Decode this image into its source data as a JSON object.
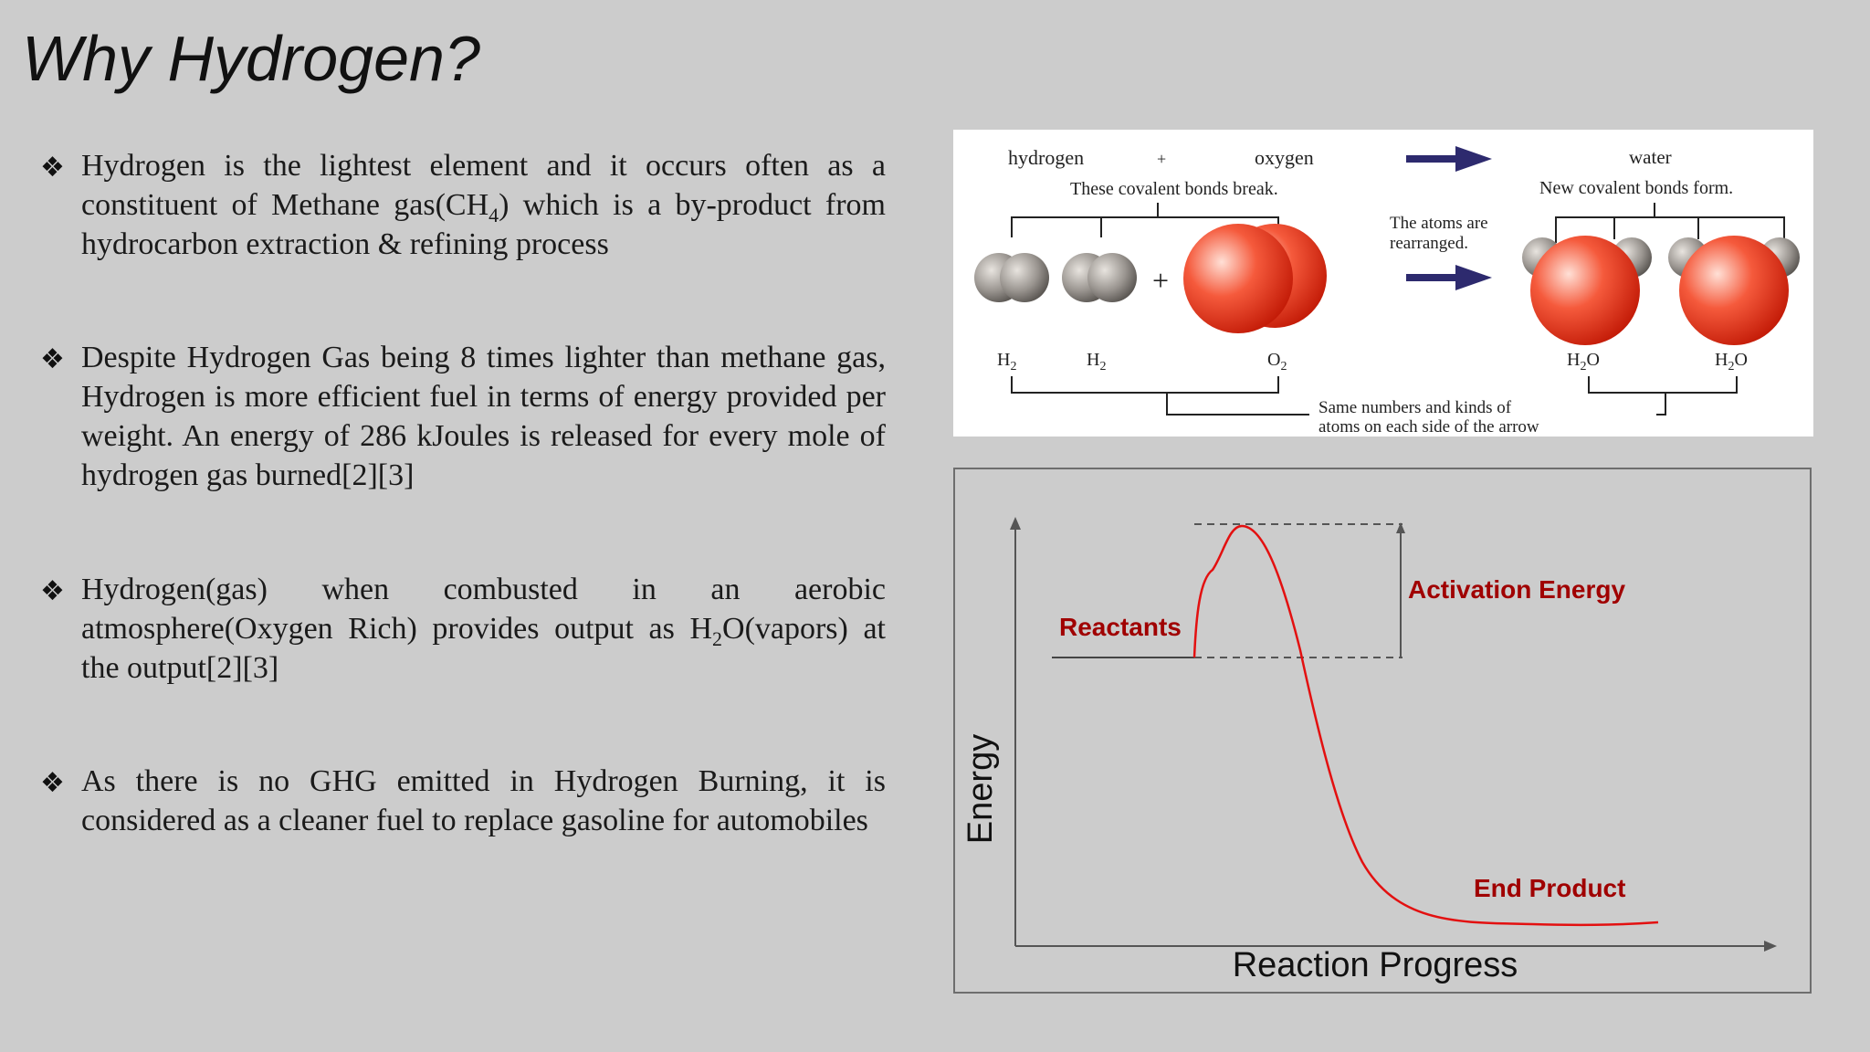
{
  "slide": {
    "title": "Why Hydrogen?",
    "bullet_marker": "❖",
    "bullets": [
      {
        "before": "Hydrogen is the lightest element and it occurs often as a constituent of Methane gas(CH",
        "sub": "4",
        "after": ") which is a by-product from hydrocarbon extraction & refining process"
      },
      {
        "before": "Despite Hydrogen Gas being 8 times lighter than methane gas, Hydrogen is more efficient fuel in terms of energy provided per weight. An energy of 286 kJoules is released for every mole of hydrogen gas burned[2][3]",
        "sub": "",
        "after": ""
      },
      {
        "before": "Hydrogen(gas) when combusted in an aerobic atmosphere(Oxygen Rich) provides output as H",
        "sub": "2",
        "after": "O(vapors) at the output[2][3]"
      },
      {
        "before": "As there is no GHG emitted in Hydrogen Burning, it is considered as a cleaner fuel to replace gasoline for automobiles",
        "sub": "",
        "after": ""
      }
    ]
  },
  "reaction_diagram": {
    "hydrogen": "hydrogen",
    "plus_small": "+",
    "oxygen": "oxygen",
    "bonds_break": "These covalent bonds break.",
    "rearranged_1": "The atoms are",
    "rearranged_2": "rearranged.",
    "water": "water",
    "bonds_form": "New covalent bonds form.",
    "plus_big": "+",
    "h2": "H",
    "h2_sub": "2",
    "o2": "O",
    "o2_sub": "2",
    "h2o_h": "H",
    "h2o_sub": "2",
    "h2o_o": "O",
    "same_1": "Same numbers and kinds of",
    "same_2": "atoms on each side of the arrow",
    "colors": {
      "atom_gray": "#9a9590",
      "atom_red": "#f04a30",
      "arrow": "#2d2a6e"
    }
  },
  "energy_diagram": {
    "reactants": "Reactants",
    "activation_energy": "Activation Energy",
    "end_product": "End Product",
    "y_axis": "Energy",
    "x_axis": "Reaction Progress",
    "colors": {
      "curve": "#e31010",
      "label": "#a00000"
    }
  }
}
